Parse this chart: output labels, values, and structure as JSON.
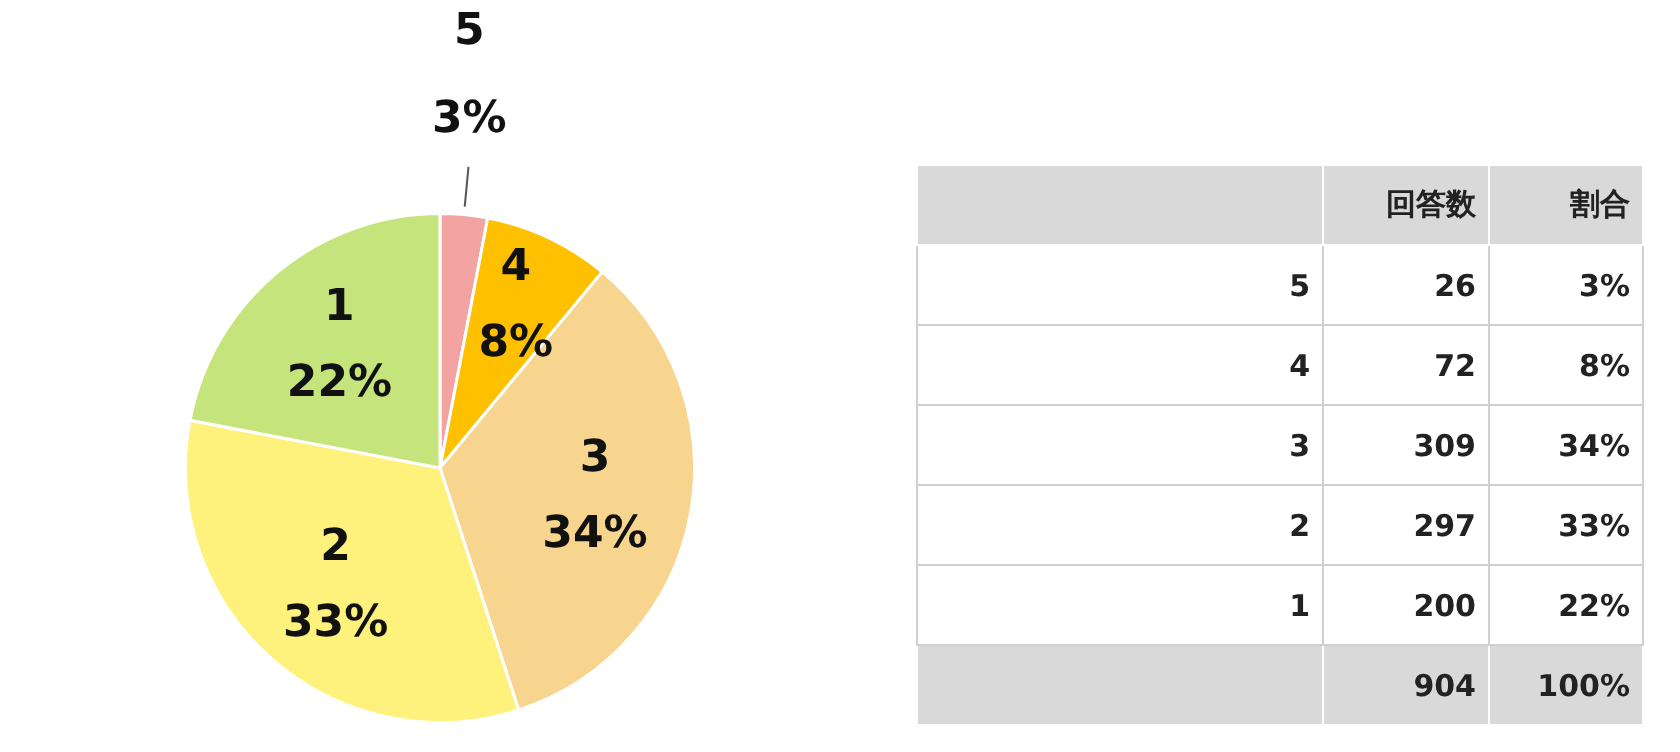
{
  "chart_data": {
    "type": "pie",
    "categories": [
      "5",
      "4",
      "3",
      "2",
      "1"
    ],
    "values": [
      3,
      8,
      34,
      33,
      22
    ],
    "value_labels": [
      "3%",
      "8%",
      "34%",
      "33%",
      "22%"
    ],
    "colors": [
      "#f4a3a3",
      "#ffc000",
      "#f8d58e",
      "#fff27c",
      "#c5e47c"
    ],
    "data_labels": true,
    "legend": false,
    "annotations": [
      "回答数",
      "割合",
      "26",
      "72",
      "309",
      "297",
      "200",
      "904",
      "100%"
    ]
  }
}
